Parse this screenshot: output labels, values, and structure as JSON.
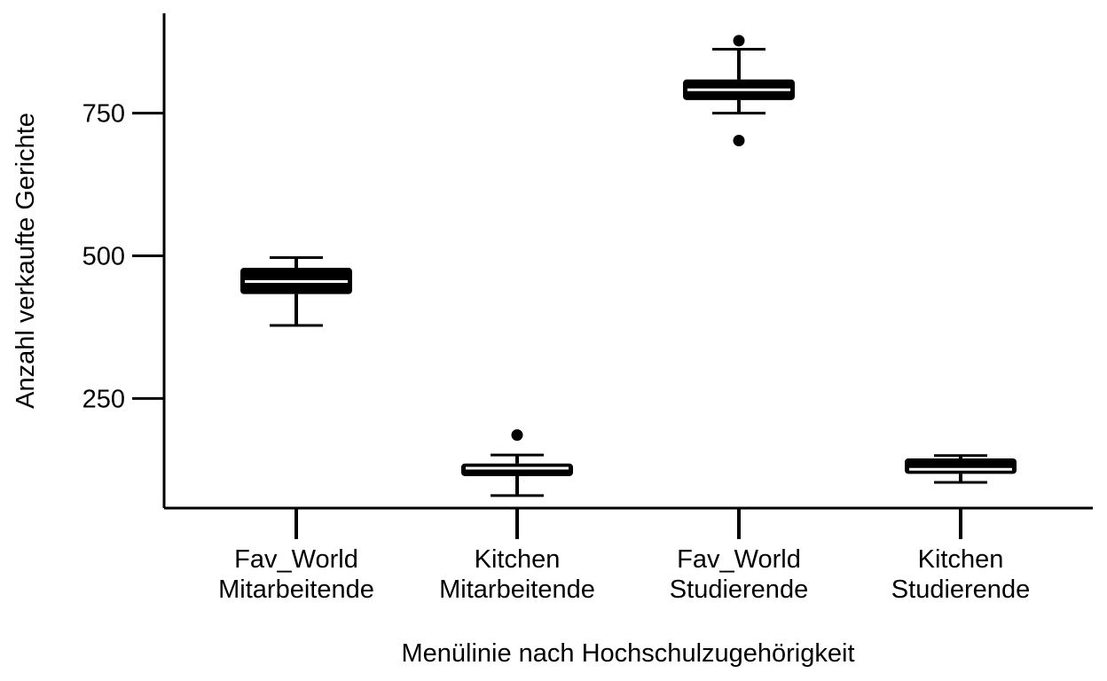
{
  "chart_data": {
    "type": "boxplot",
    "title": "",
    "xlabel": "Menülinie nach Hochschulzugehörigkeit",
    "ylabel": "Anzahl verkaufte Gerichte",
    "ylim": [
      58,
      925
    ],
    "yticks": [
      250,
      500,
      750
    ],
    "grid": false,
    "legend": "none",
    "colors": {
      "box_fill": "#000000",
      "median": "#ffffff",
      "outlier": "#000000",
      "axis": "#000000"
    },
    "categories": [
      {
        "line1": "Fav_World",
        "line2": "Mitarbeitende"
      },
      {
        "line1": "Kitchen",
        "line2": "Mitarbeitende"
      },
      {
        "line1": "Fav_World",
        "line2": "Studierende"
      },
      {
        "line1": "Kitchen",
        "line2": "Studierende"
      }
    ],
    "boxes": [
      {
        "whisker_low": 378,
        "q1": 433,
        "median": 455,
        "q3": 479,
        "whisker_high": 497,
        "outliers": []
      },
      {
        "whisker_low": 80,
        "q1": 114,
        "median": 128,
        "q3": 136,
        "whisker_high": 151,
        "outliers": [
          186
        ]
      },
      {
        "whisker_low": 750,
        "q1": 773,
        "median": 791,
        "q3": 809,
        "whisker_high": 862,
        "outliers": [
          877,
          702
        ]
      },
      {
        "whisker_low": 103,
        "q1": 118,
        "median": 126,
        "q3": 145,
        "whisker_high": 150,
        "outliers": []
      }
    ]
  }
}
